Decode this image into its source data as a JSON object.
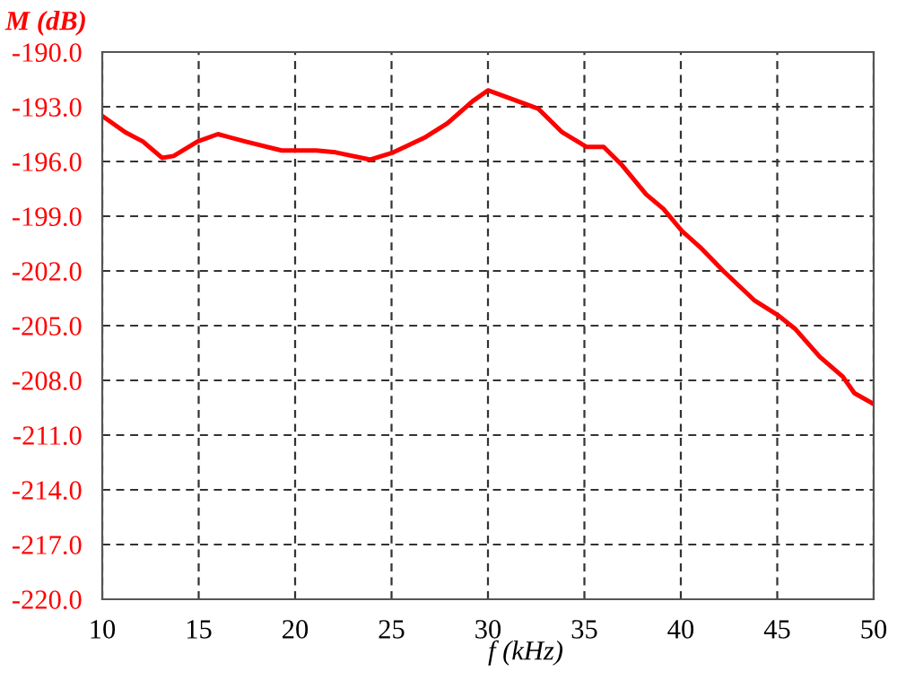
{
  "chart_data": {
    "type": "line",
    "xlabel": "f (kHz)",
    "ylabel": "M (dB)",
    "x": [
      10,
      11.2,
      12.1,
      13.1,
      13.7,
      14.95,
      16.0,
      17.4,
      19.3,
      21.1,
      22.1,
      23.9,
      25.1,
      26.7,
      27.9,
      29.2,
      30.0,
      31.05,
      32.6,
      33.85,
      35.1,
      36.0,
      36.95,
      38.2,
      39.1,
      40.05,
      41.0,
      42.2,
      43.8,
      45.0,
      45.95,
      47.2,
      48.4,
      49.0,
      50
    ],
    "series": [
      {
        "color": "#ff0000",
        "values": [
          -193.5,
          -194.4,
          -194.9,
          -195.8,
          -195.7,
          -194.9,
          -194.5,
          -194.9,
          -195.4,
          -195.4,
          -195.5,
          -195.9,
          -195.5,
          -194.7,
          -193.9,
          -192.7,
          -192.1,
          -192.5,
          -193.1,
          -194.4,
          -195.2,
          -195.2,
          -196.2,
          -197.8,
          -198.6,
          -199.8,
          -200.7,
          -202.0,
          -203.6,
          -204.4,
          -205.2,
          -206.7,
          -207.8,
          -208.7,
          -209.3
        ]
      }
    ],
    "xlim": [
      10,
      50
    ],
    "xticks": [
      10,
      15,
      20,
      25,
      30,
      35,
      40,
      45,
      50
    ],
    "ylim": [
      -220,
      -190
    ],
    "yticks": [
      {
        "value": -220,
        "label": "-220.0"
      },
      {
        "value": -217,
        "label": "-217.0"
      },
      {
        "value": -214,
        "label": "-214.0"
      },
      {
        "value": -211,
        "label": "-211.0"
      },
      {
        "value": -208,
        "label": "-208.0"
      },
      {
        "value": -205,
        "label": "-205.0"
      },
      {
        "value": -202,
        "label": "-202.0"
      },
      {
        "value": -199,
        "label": "-199.0"
      },
      {
        "value": -196,
        "label": "-196.0"
      },
      {
        "value": -193,
        "label": "-193.0"
      },
      {
        "value": -190,
        "label": "-190.0"
      }
    ],
    "grid": true,
    "line_style": "solid"
  }
}
